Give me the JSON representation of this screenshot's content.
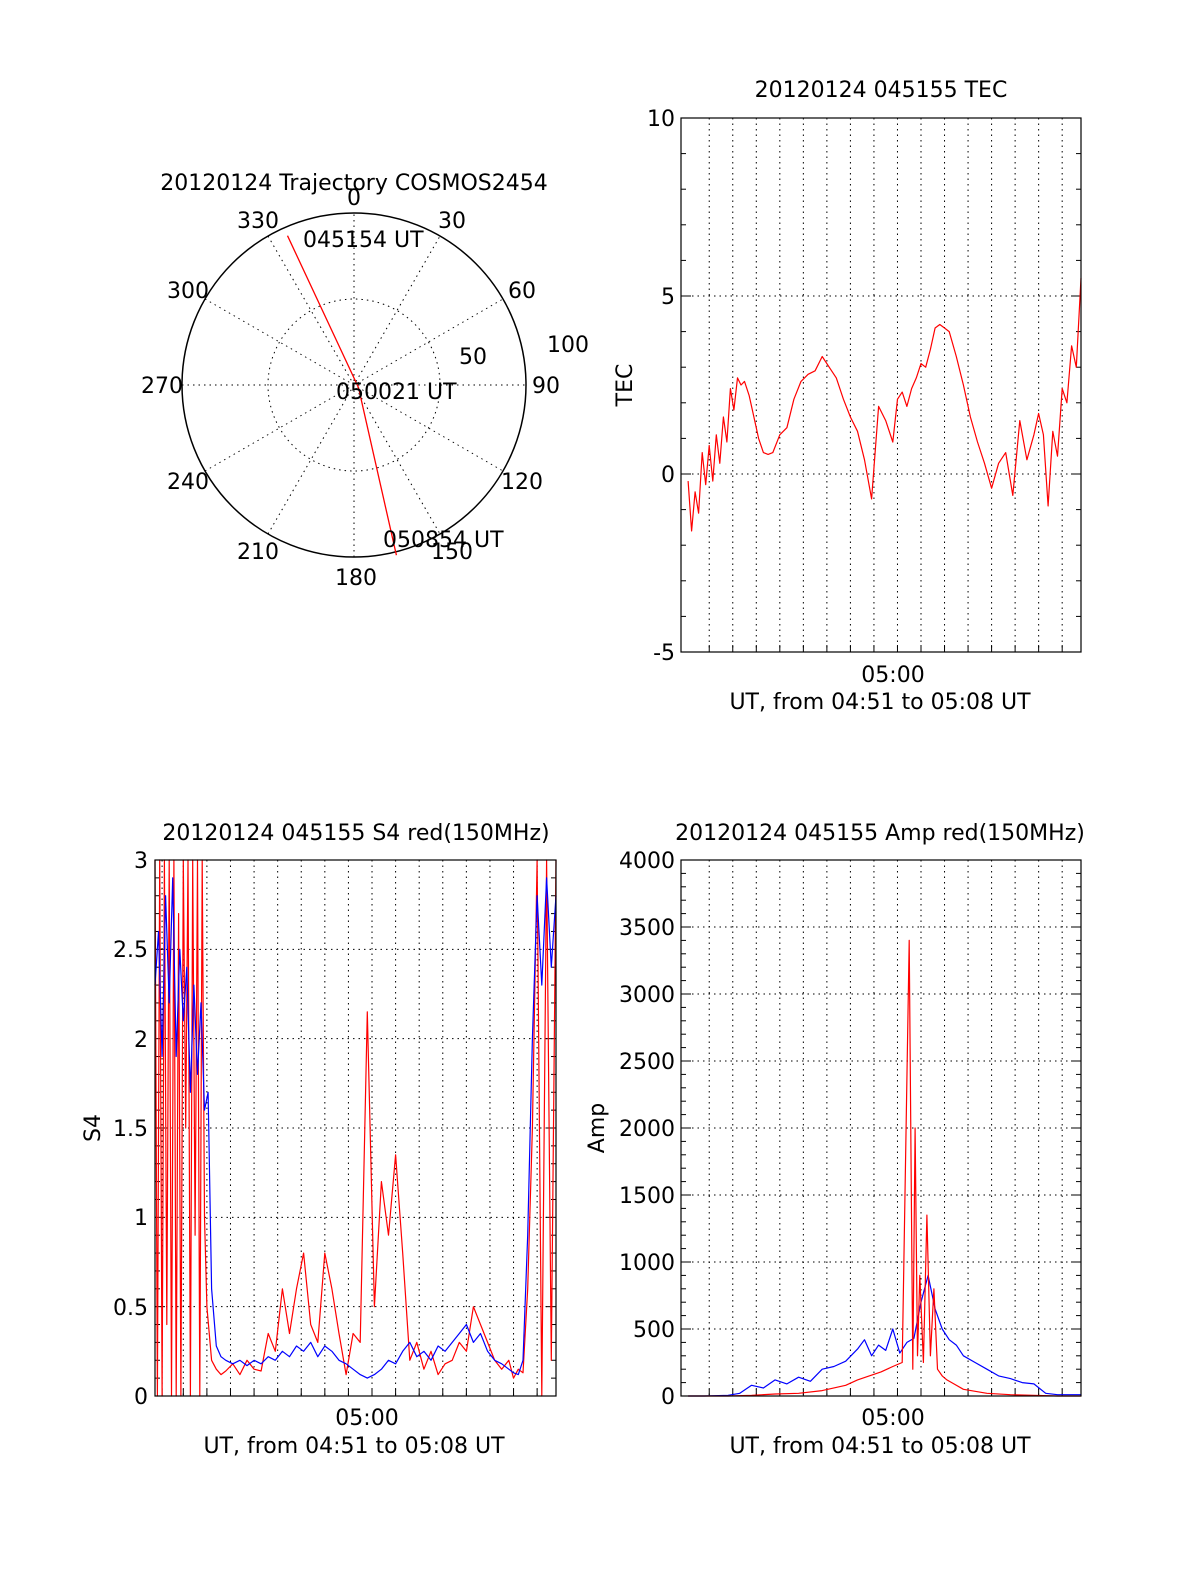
{
  "chart_data": [
    {
      "type": "polar",
      "title": "20120124 Trajectory COSMOS2454",
      "azimuth_labels": [
        "0",
        "30",
        "60",
        "90",
        "120",
        "150",
        "180",
        "210",
        "240",
        "270",
        "300",
        "330"
      ],
      "ring_labels": [
        "50",
        "100"
      ],
      "trajectory": {
        "color": "#ff0000",
        "start": {
          "azimuth": 336,
          "distance": 95
        },
        "mid": {
          "azimuth": 120,
          "distance": 3
        },
        "end": {
          "azimuth": 166,
          "distance": 102
        }
      },
      "annotations": {
        "start": "045154 UT",
        "mid": "050021 UT",
        "end": "050854 UT"
      }
    },
    {
      "type": "line",
      "title": "20120124 045155 TEC",
      "ylabel": "TEC",
      "xlabel": "UT, from 04:51 to 05:08 UT",
      "xtick_label": "05:00",
      "ylim": [
        -5,
        10
      ],
      "yticks": [
        "-5",
        "0",
        "5",
        "10"
      ],
      "xlim": [
        0,
        17
      ],
      "series": [
        {
          "color": "#ff0000",
          "x": [
            0.3,
            0.45,
            0.6,
            0.75,
            0.9,
            1.05,
            1.2,
            1.35,
            1.5,
            1.65,
            1.8,
            1.95,
            2.1,
            2.25,
            2.4,
            2.55,
            2.7,
            2.9,
            3.1,
            3.3,
            3.5,
            3.7,
            3.9,
            4.2,
            4.5,
            4.8,
            5.1,
            5.4,
            5.7,
            6.0,
            6.3,
            6.6,
            6.9,
            7.2,
            7.5,
            7.8,
            8.1,
            8.4,
            8.7,
            9.0,
            9.2,
            9.4,
            9.6,
            9.8,
            10.0,
            10.2,
            10.4,
            10.6,
            10.8,
            11.0,
            11.2,
            11.4,
            11.7,
            12.0,
            12.3,
            12.6,
            12.9,
            13.2,
            13.5,
            13.8,
            14.1,
            14.4,
            14.7,
            15.0,
            15.2,
            15.4,
            15.6,
            15.8,
            16.0,
            16.2,
            16.4,
            16.6,
            16.8,
            17.0
          ],
          "y": [
            -0.2,
            -1.6,
            -0.5,
            -1.1,
            0.6,
            -0.3,
            0.8,
            -0.2,
            1.1,
            0.3,
            1.6,
            0.9,
            2.4,
            1.8,
            2.7,
            2.5,
            2.6,
            2.2,
            1.6,
            1.0,
            0.6,
            0.55,
            0.6,
            1.1,
            1.3,
            2.1,
            2.6,
            2.8,
            2.9,
            3.3,
            3.0,
            2.7,
            2.1,
            1.6,
            1.2,
            0.4,
            -0.7,
            1.9,
            1.5,
            0.9,
            2.1,
            2.3,
            1.9,
            2.4,
            2.7,
            3.1,
            3.0,
            3.5,
            4.1,
            4.2,
            4.1,
            4.0,
            3.3,
            2.5,
            1.6,
            0.9,
            0.3,
            -0.4,
            0.3,
            0.6,
            -0.6,
            1.5,
            0.4,
            1.1,
            1.7,
            1.1,
            -0.9,
            1.2,
            0.5,
            2.4,
            2.0,
            3.6,
            3.0,
            5.5
          ]
        }
      ]
    },
    {
      "type": "line",
      "title": "20120124 045155 S4 red(150MHz)",
      "ylabel": "S4",
      "xlabel": "UT, from 04:51 to 05:08 UT",
      "xtick_label": "05:00",
      "ylim": [
        0,
        3
      ],
      "yticks": [
        "0",
        "0.5",
        "1",
        "1.5",
        "2",
        "2.5",
        "3"
      ],
      "xlim": [
        0,
        17
      ],
      "series": [
        {
          "color": "#ff0000",
          "x": [
            0,
            0.1,
            0.2,
            0.3,
            0.4,
            0.5,
            0.6,
            0.7,
            0.8,
            0.9,
            1.0,
            1.1,
            1.2,
            1.3,
            1.4,
            1.5,
            1.6,
            1.7,
            1.8,
            1.9,
            2.0,
            2.1,
            2.2,
            2.4,
            2.6,
            2.8,
            3.0,
            3.3,
            3.6,
            3.9,
            4.2,
            4.5,
            4.8,
            5.1,
            5.4,
            5.7,
            6.0,
            6.3,
            6.6,
            6.9,
            7.2,
            7.5,
            7.8,
            8.1,
            8.4,
            8.7,
            9.0,
            9.3,
            9.6,
            9.9,
            10.2,
            10.5,
            10.8,
            11.1,
            11.4,
            11.7,
            12.0,
            12.3,
            12.6,
            12.9,
            13.2,
            13.5,
            13.8,
            14.1,
            14.4,
            14.7,
            15.0,
            15.2,
            15.4,
            15.6,
            15.8,
            16.0,
            16.2,
            16.4,
            16.6,
            16.8,
            17.0
          ],
          "y": [
            3,
            0,
            3,
            0,
            3,
            0.4,
            3,
            0,
            3,
            0,
            2.7,
            0,
            3,
            1.5,
            3,
            0,
            3,
            0.9,
            3,
            0,
            3,
            1.0,
            0.5,
            0.2,
            0.15,
            0.12,
            0.14,
            0.18,
            0.12,
            0.2,
            0.15,
            0.14,
            0.35,
            0.25,
            0.6,
            0.35,
            0.6,
            0.8,
            0.4,
            0.3,
            0.8,
            0.6,
            0.35,
            0.12,
            0.35,
            0.3,
            2.15,
            0.5,
            1.2,
            0.9,
            1.35,
            0.8,
            0.2,
            0.3,
            0.15,
            0.25,
            0.12,
            0.18,
            0.2,
            0.3,
            0.25,
            0.5,
            0.4,
            0.3,
            0.2,
            0.15,
            0.2,
            0.1,
            0.15,
            0.13,
            0.6,
            1.5,
            3,
            0,
            3,
            0.2,
            3
          ]
        },
        {
          "color": "#0000ff",
          "x": [
            0,
            0.15,
            0.3,
            0.45,
            0.6,
            0.75,
            0.9,
            1.05,
            1.2,
            1.35,
            1.5,
            1.65,
            1.8,
            1.95,
            2.1,
            2.25,
            2.4,
            2.6,
            2.8,
            3.0,
            3.3,
            3.6,
            3.9,
            4.2,
            4.5,
            4.8,
            5.1,
            5.4,
            5.7,
            6.0,
            6.3,
            6.6,
            6.9,
            7.2,
            7.5,
            7.8,
            8.1,
            8.4,
            8.7,
            9.0,
            9.3,
            9.6,
            9.9,
            10.2,
            10.5,
            10.8,
            11.1,
            11.4,
            11.7,
            12.0,
            12.3,
            12.6,
            12.9,
            13.2,
            13.5,
            13.8,
            14.1,
            14.4,
            14.7,
            15.0,
            15.2,
            15.4,
            15.6,
            15.8,
            16.0,
            16.2,
            16.4,
            16.6,
            16.8,
            17.0
          ],
          "y": [
            2.3,
            2.6,
            1.9,
            2.8,
            2.2,
            2.9,
            1.9,
            2.5,
            2.1,
            2.4,
            1.7,
            2.3,
            1.8,
            2.2,
            1.6,
            1.7,
            0.6,
            0.28,
            0.22,
            0.2,
            0.18,
            0.2,
            0.17,
            0.2,
            0.18,
            0.22,
            0.2,
            0.25,
            0.22,
            0.28,
            0.25,
            0.3,
            0.22,
            0.28,
            0.25,
            0.2,
            0.18,
            0.15,
            0.12,
            0.1,
            0.12,
            0.15,
            0.2,
            0.18,
            0.25,
            0.3,
            0.22,
            0.25,
            0.2,
            0.28,
            0.25,
            0.3,
            0.35,
            0.4,
            0.3,
            0.35,
            0.25,
            0.2,
            0.18,
            0.15,
            0.13,
            0.12,
            0.2,
            0.9,
            2.0,
            2.8,
            2.3,
            2.9,
            2.4,
            2.8
          ]
        }
      ]
    },
    {
      "type": "line",
      "title": "20120124 045155 Amp red(150MHz)",
      "ylabel": "Amp",
      "xlabel": "UT, from 04:51 to 05:08 UT",
      "xtick_label": "05:00",
      "ylim": [
        0,
        4000
      ],
      "yticks": [
        "0",
        "500",
        "1000",
        "1500",
        "2000",
        "2500",
        "3000",
        "3500",
        "4000"
      ],
      "xlim": [
        0,
        17
      ],
      "series": [
        {
          "color": "#0000ff",
          "x": [
            0.3,
            1.0,
            2.0,
            2.5,
            3.0,
            3.5,
            4.0,
            4.5,
            5.0,
            5.5,
            6.0,
            6.5,
            7.0,
            7.5,
            7.8,
            8.1,
            8.4,
            8.7,
            9.0,
            9.3,
            9.6,
            9.9,
            10.2,
            10.5,
            10.8,
            11.1,
            11.4,
            11.7,
            12.0,
            12.5,
            13.0,
            13.5,
            14.0,
            14.5,
            15.0,
            15.5,
            16.0,
            17.0
          ],
          "y": [
            0,
            0,
            5,
            20,
            80,
            60,
            120,
            90,
            140,
            110,
            200,
            220,
            260,
            350,
            420,
            300,
            380,
            340,
            500,
            320,
            400,
            430,
            700,
            900,
            650,
            500,
            420,
            380,
            300,
            250,
            200,
            150,
            130,
            100,
            90,
            20,
            10,
            10
          ]
        },
        {
          "color": "#ff0000",
          "x": [
            0.3,
            2.0,
            3.0,
            4.0,
            5.0,
            6.0,
            7.0,
            7.5,
            8.0,
            8.5,
            9.0,
            9.4,
            9.7,
            9.85,
            9.95,
            10.05,
            10.15,
            10.3,
            10.45,
            10.6,
            10.75,
            10.9,
            11.1,
            11.3,
            11.6,
            12.0,
            13.0,
            14.0,
            15.0,
            16.0,
            17.0
          ],
          "y": [
            0,
            0,
            5,
            15,
            20,
            40,
            80,
            120,
            150,
            180,
            220,
            250,
            3400,
            200,
            2000,
            300,
            900,
            250,
            1350,
            300,
            800,
            200,
            150,
            120,
            90,
            50,
            20,
            10,
            5,
            0,
            0
          ]
        }
      ]
    }
  ]
}
